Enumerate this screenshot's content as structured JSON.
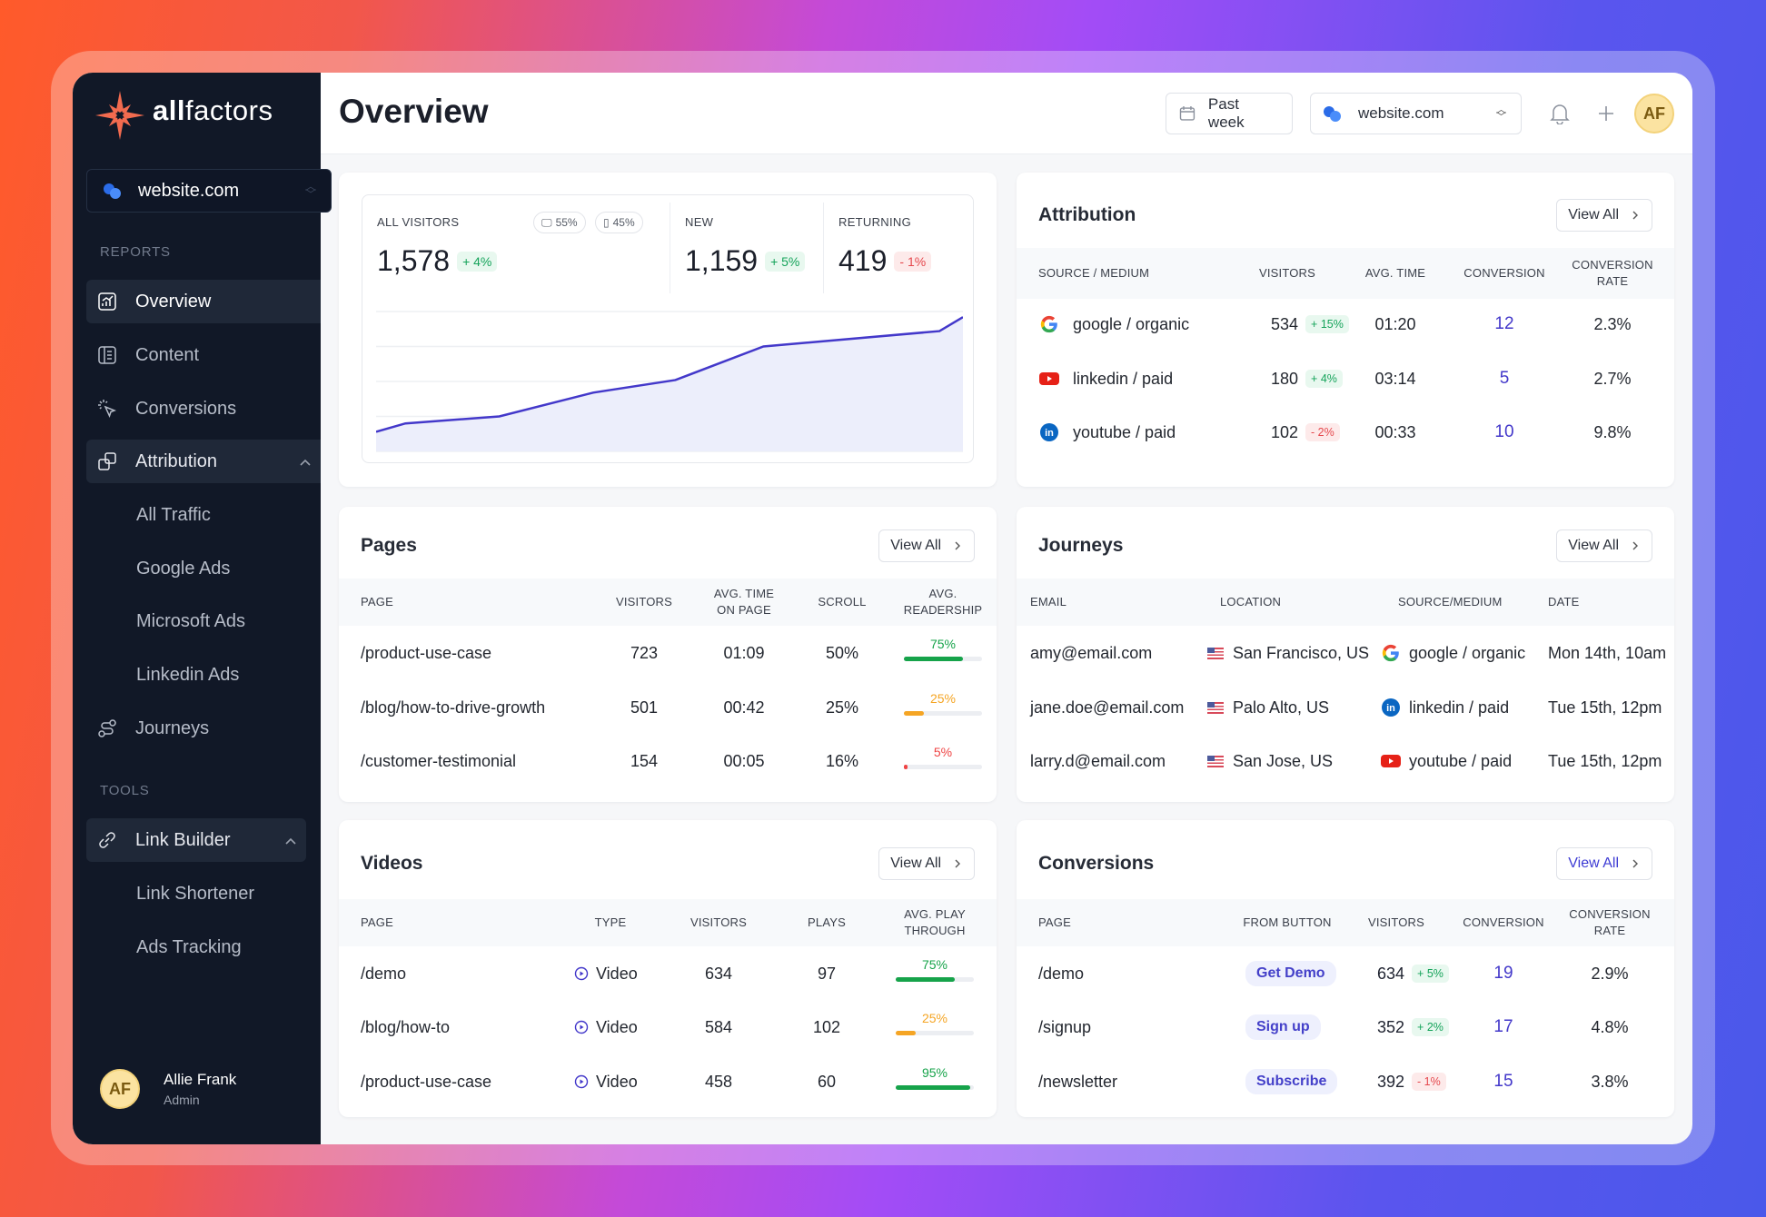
{
  "brand": {
    "name_bold": "all",
    "name_light": "factors",
    "logo_color": "#f26b4f"
  },
  "sidebar": {
    "site": "website.com",
    "reports_label": "REPORTS",
    "items": [
      {
        "label": "Overview",
        "icon": "chart-icon",
        "active": true
      },
      {
        "label": "Content",
        "icon": "document-icon"
      },
      {
        "label": "Conversions",
        "icon": "cursor-click-icon"
      },
      {
        "label": "Attribution",
        "icon": "attribution-icon",
        "expanded": true
      },
      {
        "label": "All Traffic",
        "sub": true
      },
      {
        "label": "Google Ads",
        "sub": true
      },
      {
        "label": "Microsoft Ads",
        "sub": true
      },
      {
        "label": "Linkedin Ads",
        "sub": true
      },
      {
        "label": "Journeys",
        "icon": "route-icon"
      }
    ],
    "tools_label": "TOOLS",
    "tools": [
      {
        "label": "Link Builder",
        "icon": "link-icon",
        "expanded": true
      },
      {
        "label": "Link Shortener",
        "sub": true
      },
      {
        "label": "Ads Tracking",
        "sub": true
      }
    ],
    "user": {
      "initials": "AF",
      "name": "Allie Frank",
      "role": "Admin"
    }
  },
  "header": {
    "title": "Overview",
    "date_range": "Past week",
    "site": "website.com",
    "avatar": "AF"
  },
  "visitors": {
    "all": {
      "label": "ALL VISITORS",
      "value": "1,578",
      "change": "+ 4%",
      "desktop": "55%",
      "mobile": "45%"
    },
    "new": {
      "label": "NEW",
      "value": "1,159",
      "change": "+ 5%"
    },
    "returning": {
      "label": "RETURNING",
      "value": "419",
      "change": "- 1%"
    }
  },
  "chart_data": {
    "type": "area",
    "x": [
      0,
      5,
      21,
      37,
      51,
      66,
      96,
      100
    ],
    "values": [
      14,
      20,
      25,
      42,
      51,
      75,
      86,
      96
    ],
    "ylim": [
      0,
      100
    ],
    "grid": true,
    "color": "#4338ca",
    "fill": "#eceefb"
  },
  "attribution": {
    "title": "Attribution",
    "view_all": "View All",
    "headers": [
      "SOURCE / MEDIUM",
      "VISITORS",
      "AVG. TIME",
      "CONVERSION",
      "CONVERSION\nRATE"
    ],
    "rows": [
      {
        "icon": "google-icon",
        "source": "google / organic",
        "visitors": "534",
        "change": "+ 15%",
        "trend": "up",
        "time": "01:20",
        "conversion": "12",
        "rate": "2.3%"
      },
      {
        "icon": "youtube-icon",
        "source": "linkedin / paid",
        "visitors": "180",
        "change": "+ 4%",
        "trend": "up",
        "time": "03:14",
        "conversion": "5",
        "rate": "2.7%"
      },
      {
        "icon": "linkedin-icon",
        "source": "youtube / paid",
        "visitors": "102",
        "change": "- 2%",
        "trend": "down",
        "time": "00:33",
        "conversion": "10",
        "rate": "9.8%"
      }
    ]
  },
  "pages": {
    "title": "Pages",
    "view_all": "View All",
    "headers": [
      "PAGE",
      "VISITORS",
      "AVG. TIME\nON PAGE",
      "SCROLL",
      "AVG.\nREADERSHIP"
    ],
    "rows": [
      {
        "page": "/product-use-case",
        "visitors": "723",
        "time": "01:09",
        "scroll": "50%",
        "readership": "75%",
        "level": 75,
        "color": "#16a34a"
      },
      {
        "page": "/blog/how-to-drive-growth",
        "visitors": "501",
        "time": "00:42",
        "scroll": "25%",
        "readership": "25%",
        "level": 25,
        "color": "#f5a524"
      },
      {
        "page": "/customer-testimonial",
        "visitors": "154",
        "time": "00:05",
        "scroll": "16%",
        "readership": "5%",
        "level": 5,
        "color": "#ef4444"
      }
    ]
  },
  "journeys": {
    "title": "Journeys",
    "view_all": "View All",
    "headers": [
      "EMAIL",
      "LOCATION",
      "SOURCE/MEDIUM",
      "DATE"
    ],
    "rows": [
      {
        "email": "amy@email.com",
        "location": "San Francisco, US",
        "icon": "google-icon",
        "source": "google / organic",
        "date": "Mon 14th, 10am"
      },
      {
        "email": "jane.doe@email.com",
        "location": "Palo Alto, US",
        "icon": "linkedin-icon",
        "source": "linkedin / paid",
        "date": "Tue 15th, 12pm"
      },
      {
        "email": "larry.d@email.com",
        "location": "San Jose, US",
        "icon": "youtube-icon",
        "source": "youtube / paid",
        "date": "Tue 15th, 12pm"
      }
    ]
  },
  "videos": {
    "title": "Videos",
    "view_all": "View All",
    "headers": [
      "PAGE",
      "TYPE",
      "VISITORS",
      "PLAYS",
      "AVG. PLAY\nTHROUGH"
    ],
    "rows": [
      {
        "page": "/demo",
        "type": "Video",
        "visitors": "634",
        "plays": "97",
        "through": "75%",
        "level": 75,
        "color": "#16a34a"
      },
      {
        "page": "/blog/how-to",
        "type": "Video",
        "visitors": "584",
        "plays": "102",
        "through": "25%",
        "level": 25,
        "color": "#f5a524"
      },
      {
        "page": "/product-use-case",
        "type": "Video",
        "visitors": "458",
        "plays": "60",
        "through": "95%",
        "level": 95,
        "color": "#16a34a"
      }
    ]
  },
  "conversions": {
    "title": "Conversions",
    "view_all": "View All",
    "headers": [
      "PAGE",
      "FROM BUTTON",
      "VISITORS",
      "CONVERSION",
      "CONVERSION\nRATE"
    ],
    "rows": [
      {
        "page": "/demo",
        "button": "Get Demo",
        "visitors": "634",
        "change": "+ 5%",
        "trend": "up",
        "conversion": "19",
        "rate": "2.9%"
      },
      {
        "page": "/signup",
        "button": "Sign up",
        "visitors": "352",
        "change": "+ 2%",
        "trend": "up",
        "conversion": "17",
        "rate": "4.8%"
      },
      {
        "page": "/newsletter",
        "button": "Subscribe",
        "visitors": "392",
        "change": "- 1%",
        "trend": "down",
        "conversion": "15",
        "rate": "3.8%"
      }
    ]
  }
}
